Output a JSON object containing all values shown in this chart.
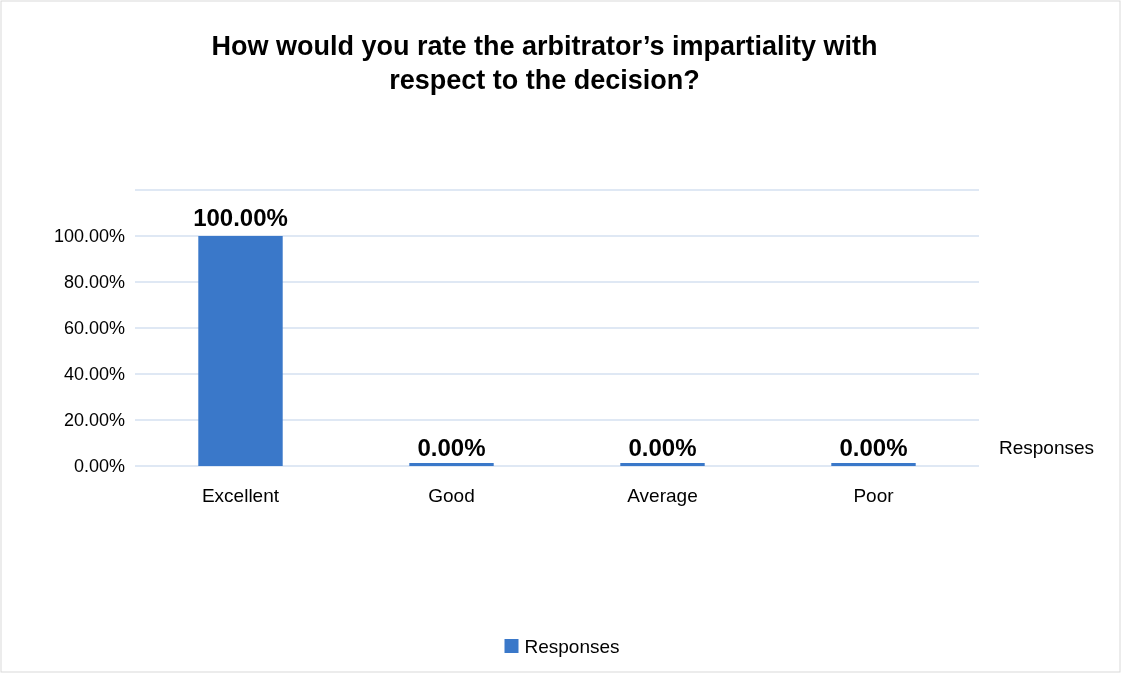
{
  "chart_data": {
    "type": "bar",
    "title": "How would you rate the arbitrator’s impartiality with respect to the decision?",
    "categories": [
      "Excellent",
      "Good",
      "Average",
      "Poor"
    ],
    "series": [
      {
        "name": "Responses",
        "color": "#3a78c9",
        "values": [
          100,
          0,
          0,
          0
        ],
        "value_labels": [
          "100.00%",
          "0.00%",
          "0.00%",
          "0.00%"
        ]
      }
    ],
    "ylim": [
      0,
      120
    ],
    "yticks": [
      {
        "value": 0,
        "label": "0.00%"
      },
      {
        "value": 20,
        "label": "20.00%"
      },
      {
        "value": 40,
        "label": "40.00%"
      },
      {
        "value": 60,
        "label": "60.00%"
      },
      {
        "value": 80,
        "label": "80.00%"
      },
      {
        "value": 100,
        "label": "100.00%"
      },
      {
        "value": 120,
        "label": null
      }
    ],
    "grid": "y",
    "legend": "bottom"
  }
}
